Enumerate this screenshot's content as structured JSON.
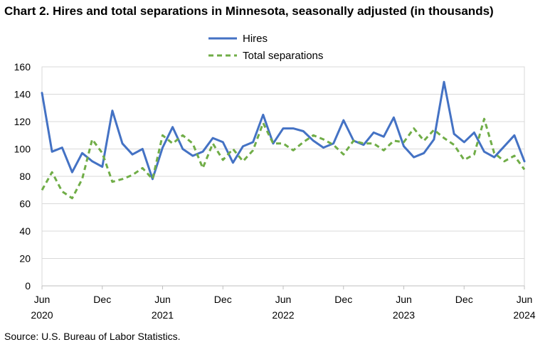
{
  "title": "Chart 2. Hires and total separations in Minnesota, seasonally adjusted (in thousands)",
  "source": "Source: U.S. Bureau of Labor Statistics.",
  "colors": {
    "hires": "#4472C4",
    "separations": "#70AD47",
    "grid": "#D9D9D9"
  },
  "chart_data": {
    "type": "line",
    "title": "Chart 2. Hires and total separations in Minnesota, seasonally adjusted (in thousands)",
    "xlabel": "",
    "ylabel": "",
    "ylim": [
      0,
      160
    ],
    "yticks": [
      "0",
      "20",
      "40",
      "60",
      "80",
      "100",
      "120",
      "140",
      "160"
    ],
    "grid": true,
    "legend_position": "top-center",
    "x": [
      "2020-06",
      "2020-07",
      "2020-08",
      "2020-09",
      "2020-10",
      "2020-11",
      "2020-12",
      "2021-01",
      "2021-02",
      "2021-03",
      "2021-04",
      "2021-05",
      "2021-06",
      "2021-07",
      "2021-08",
      "2021-09",
      "2021-10",
      "2021-11",
      "2021-12",
      "2022-01",
      "2022-02",
      "2022-03",
      "2022-04",
      "2022-05",
      "2022-06",
      "2022-07",
      "2022-08",
      "2022-09",
      "2022-10",
      "2022-11",
      "2022-12",
      "2023-01",
      "2023-02",
      "2023-03",
      "2023-04",
      "2023-05",
      "2023-06",
      "2023-07",
      "2023-08",
      "2023-09",
      "2023-10",
      "2023-11",
      "2023-12",
      "2024-01",
      "2024-02",
      "2024-03",
      "2024-04",
      "2024-05",
      "2024-06"
    ],
    "x_tick_labels": [
      {
        "month": "Jun",
        "year": "2020"
      },
      {
        "month": "Dec",
        "year": ""
      },
      {
        "month": "Jun",
        "year": "2021"
      },
      {
        "month": "Dec",
        "year": ""
      },
      {
        "month": "Jun",
        "year": "2022"
      },
      {
        "month": "Dec",
        "year": ""
      },
      {
        "month": "Jun",
        "year": "2023"
      },
      {
        "month": "Dec",
        "year": ""
      },
      {
        "month": "Jun",
        "year": "2024"
      }
    ],
    "series": [
      {
        "name": "Hires",
        "style": "solid",
        "values": [
          141,
          98,
          101,
          83,
          97,
          91,
          87,
          128,
          104,
          96,
          100,
          78,
          101,
          116,
          100,
          95,
          98,
          108,
          105,
          90,
          102,
          105,
          125,
          104,
          115,
          115,
          113,
          106,
          101,
          104,
          121,
          106,
          103,
          112,
          109,
          123,
          102,
          94,
          97,
          107,
          149,
          111,
          105,
          112,
          98,
          94,
          102,
          110,
          91
        ]
      },
      {
        "name": "Total separations",
        "style": "dashed",
        "values": [
          70,
          83,
          69,
          64,
          78,
          107,
          97,
          76,
          78,
          81,
          86,
          78,
          110,
          104,
          110,
          104,
          86,
          104,
          92,
          100,
          91,
          99,
          119,
          104,
          104,
          99,
          105,
          110,
          107,
          103,
          96,
          106,
          104,
          104,
          99,
          106,
          105,
          115,
          106,
          114,
          108,
          103,
          92,
          96,
          122,
          97,
          91,
          95,
          85
        ]
      }
    ]
  }
}
